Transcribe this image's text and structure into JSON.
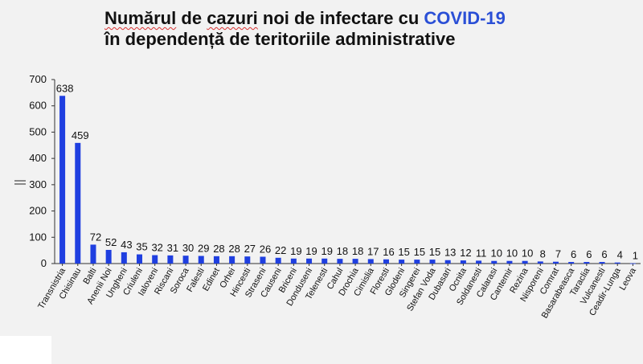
{
  "title": {
    "line1_word1": "Numărul",
    "line1_word2": "de",
    "line1_word3": "cazuri",
    "line1_rest": "noi de infectare cu",
    "line1_highlight": "COVID-19",
    "line2": "în dependență de teritoriile administrative"
  },
  "colors": {
    "bar": "#1f3fe0",
    "highlight": "#2a4fd6",
    "axis": "#333333"
  },
  "chart_data": {
    "type": "bar",
    "title": "Numărul de cazuri noi de infectare cu COVID-19 în dependență de teritoriile administrative",
    "xlabel": "",
    "ylabel": "",
    "ylim": [
      0,
      700
    ],
    "yticks": [
      0,
      100,
      200,
      300,
      400,
      500,
      600,
      700
    ],
    "grid": false,
    "legend": false,
    "categories": [
      "Transnistria",
      "Chisinau",
      "Balti",
      "Anenii Noi",
      "Ungheni",
      "Criuleni",
      "Ialoveni",
      "Riscani",
      "Soroca",
      "Falesti",
      "Edinet",
      "Orhei",
      "Hincesti",
      "Straseni",
      "Causeni",
      "Briceni",
      "Donduseni",
      "Telenesti",
      "Cahul",
      "Drochia",
      "Cimislia",
      "Floresti",
      "Glodeni",
      "Singerei",
      "Stefan Voda",
      "Dubasari",
      "Ocnita",
      "Soldanesti",
      "Calarasi",
      "Cantemir",
      "Rezina",
      "Nisporeni",
      "Comrat",
      "Basarabeasca",
      "Taraclia",
      "Vulcanesti",
      "Ceadir-Lunga",
      "Leova"
    ],
    "values": [
      638,
      459,
      72,
      52,
      43,
      35,
      32,
      31,
      30,
      29,
      28,
      28,
      27,
      26,
      22,
      19,
      19,
      19,
      18,
      18,
      17,
      16,
      15,
      15,
      15,
      13,
      12,
      11,
      10,
      10,
      10,
      8,
      7,
      6,
      6,
      6,
      4,
      1
    ]
  }
}
